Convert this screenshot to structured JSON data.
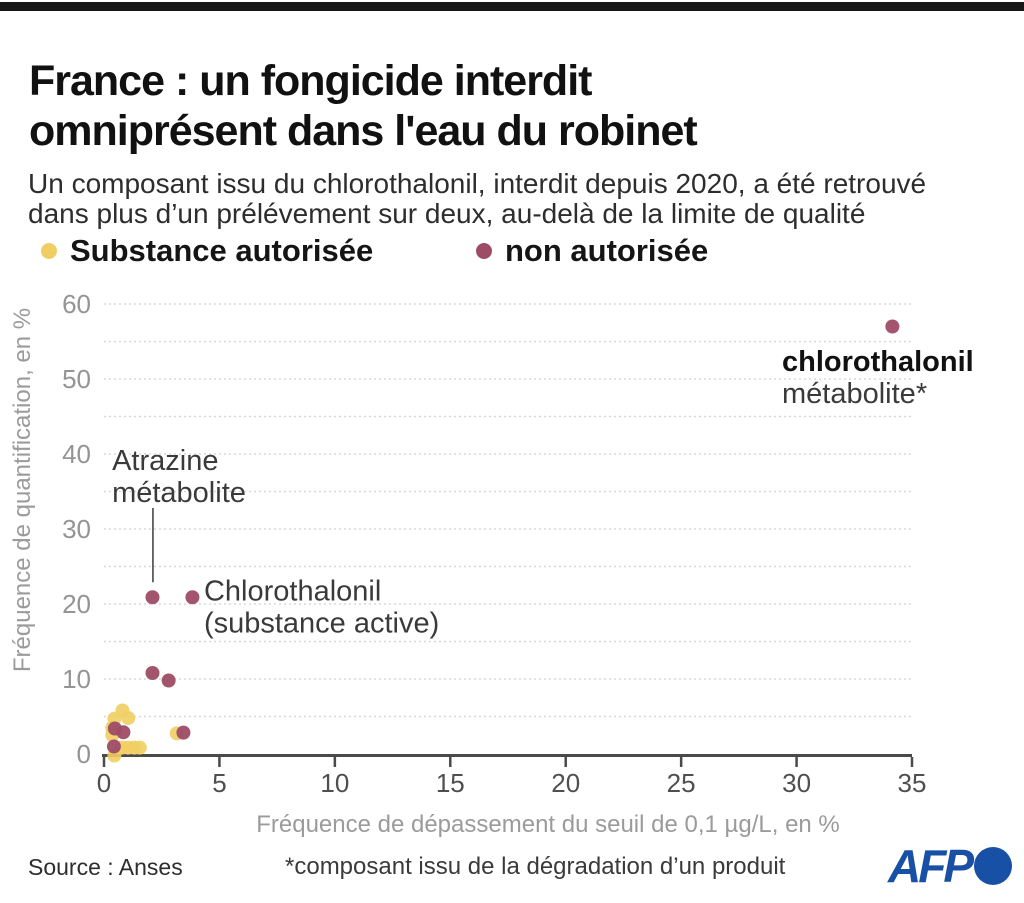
{
  "header": {
    "title": "France : un fongicide interdit\nomniprésent dans l'eau du robinet",
    "subtitle": "Un composant issu du chlorothalonil, interdit depuis 2020, a été retrouvé\ndans plus d’un prélévement sur deux, au-delà de la limite de qualité",
    "bar_color": "#171717"
  },
  "legend": {
    "position": "top-left",
    "items": [
      {
        "label": "Substance autorisée",
        "color": "#F1CE63"
      },
      {
        "label": "non autorisée",
        "color": "#9E4C66"
      }
    ]
  },
  "chart_data": {
    "type": "scatter",
    "title": "France : un fongicide interdit omniprésent dans l'eau du robinet",
    "xlabel": "Fréquence de dépassement du seuil de 0,1 µg/L, en %",
    "ylabel": "Fréquence de quantification, en %",
    "xlim": [
      0,
      35
    ],
    "ylim": [
      0,
      60
    ],
    "x_ticks": [
      0,
      5,
      10,
      15,
      20,
      25,
      30,
      35
    ],
    "y_ticks": [
      0,
      10,
      20,
      30,
      40,
      50,
      60
    ],
    "grid": true,
    "grid_step": 5,
    "series": [
      {
        "name": "Substance autorisée",
        "color": "#F1CE63",
        "points": [
          [
            0.8,
            5.8
          ],
          [
            1.05,
            4.8
          ],
          [
            0.45,
            4.7
          ],
          [
            0.36,
            3.5
          ],
          [
            0.36,
            2.5
          ],
          [
            0.77,
            0.85
          ],
          [
            1.05,
            0.85
          ],
          [
            1.31,
            0.85
          ],
          [
            1.55,
            0.85
          ],
          [
            0.45,
            -0.2
          ],
          [
            3.15,
            2.75
          ]
        ]
      },
      {
        "name": "non autorisée",
        "color": "#9E4C66",
        "points": [
          [
            34.15,
            57.0
          ],
          [
            2.1,
            20.9
          ],
          [
            3.83,
            20.9
          ],
          [
            2.1,
            10.8
          ],
          [
            2.8,
            9.8
          ],
          [
            0.84,
            2.9
          ],
          [
            0.47,
            3.4
          ],
          [
            0.43,
            1.0
          ],
          [
            3.44,
            2.85
          ]
        ]
      }
    ],
    "annotations": [
      {
        "lines": [
          "Atrazine",
          "métabolite"
        ],
        "at": [
          0.35,
          37.85
        ],
        "emphasis_first": false,
        "leader": {
          "x": 2.12,
          "y_from": 32.8,
          "y_to": 22.9
        }
      },
      {
        "lines": [
          "Chlorothalonil",
          "(substance active)"
        ],
        "at": [
          4.33,
          20.5
        ],
        "emphasis_first": false,
        "leader": null
      },
      {
        "lines": [
          "chlorothalonil",
          "métabolite*"
        ],
        "at": [
          29.37,
          51.1
        ],
        "emphasis_first": true,
        "leader": null
      }
    ]
  },
  "footer": {
    "source": "Source : Anses",
    "note": "*composant issu de la dégradation d’un produit",
    "logo": "AFP"
  },
  "colors": {
    "authorized": "#F1CE63",
    "unauthorized": "#9E4C66",
    "afp_blue": "#1850A5",
    "axis": "#4a4a4a",
    "grid": "#d8d8d8",
    "tick_label_x": "#4f4f4f",
    "tick_label_y": "#949494",
    "axis_title": "#9b9b9b",
    "annotation": "#3a3a3a"
  }
}
